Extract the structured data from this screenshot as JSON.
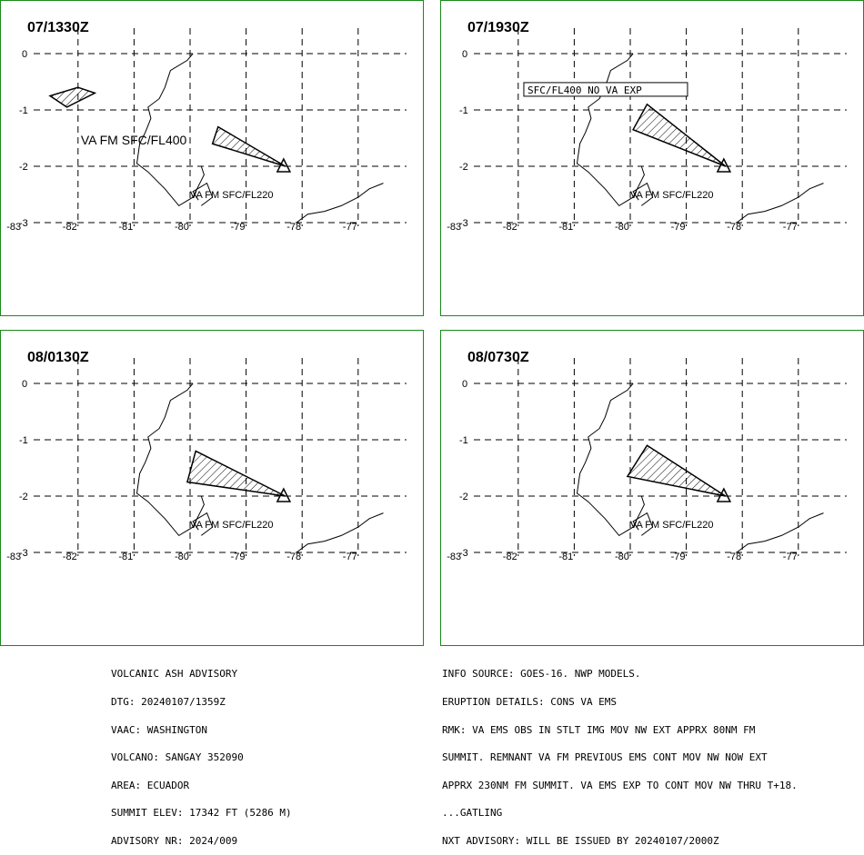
{
  "panels": [
    {
      "time": "07/1330Z",
      "labels": [
        {
          "text": "VA FM SFC/FL400",
          "lon": -81.95,
          "lat": -1.55,
          "big": true
        },
        {
          "text": "VA FM SFC/FL220",
          "lon": -80.0,
          "lat": -2.5
        }
      ],
      "boxed_label": null,
      "polygons": [
        [
          [
            -82.0,
            -0.6
          ],
          [
            -81.7,
            -0.7
          ],
          [
            -82.2,
            -0.95
          ],
          [
            -82.5,
            -0.75
          ]
        ],
        [
          [
            -79.5,
            -1.3
          ],
          [
            -78.3,
            -2.0
          ],
          [
            -79.6,
            -1.6
          ]
        ]
      ]
    },
    {
      "time": "07/1930Z",
      "labels": [
        {
          "text": "VA FM SFC/FL220",
          "lon": -80.0,
          "lat": -2.5
        }
      ],
      "boxed_label": {
        "text": "SFC/FL400 NO VA EXP",
        "lon": -81.9,
        "lat": -0.66
      },
      "polygons": [
        [
          [
            -79.7,
            -0.9
          ],
          [
            -78.3,
            -2.0
          ],
          [
            -79.95,
            -1.35
          ]
        ]
      ]
    },
    {
      "time": "08/0130Z",
      "labels": [
        {
          "text": "VA FM SFC/FL220",
          "lon": -80.0,
          "lat": -2.5
        }
      ],
      "boxed_label": null,
      "polygons": [
        [
          [
            -79.9,
            -1.2
          ],
          [
            -78.3,
            -2.0
          ],
          [
            -80.05,
            -1.75
          ]
        ]
      ]
    },
    {
      "time": "08/0730Z",
      "labels": [
        {
          "text": "VA FM SFC/FL220",
          "lon": -80.0,
          "lat": -2.5
        }
      ],
      "boxed_label": null,
      "polygons": [
        [
          [
            -79.7,
            -1.1
          ],
          [
            -78.3,
            -2.0
          ],
          [
            -80.05,
            -1.65
          ]
        ]
      ]
    }
  ],
  "axes": {
    "lon_ticks": [
      "-83",
      "-82",
      "-81",
      "-80",
      "-79",
      "-78",
      "-77"
    ],
    "lat_ticks": [
      "0",
      "-1",
      "-2",
      "-3"
    ],
    "lon_range": [
      -83.3,
      -76.55
    ],
    "lat_range": [
      0.0,
      -3.0
    ]
  },
  "volcano": {
    "name": "SANGAY",
    "lon": -78.33,
    "lat": -2.0
  },
  "advisory_left": [
    "VOLCANIC ASH ADVISORY",
    "DTG: 20240107/1359Z",
    "VAAC: WASHINGTON",
    "VOLCANO: SANGAY 352090",
    "AREA: ECUADOR",
    "SUMMIT ELEV: 17342 FT (5286 M)",
    "ADVISORY NR: 2024/009"
  ],
  "advisory_right": [
    "INFO SOURCE: GOES-16. NWP MODELS.",
    "ERUPTION DETAILS: CONS VA EMS",
    "RMK: VA EMS OBS IN STLT IMG MOV NW EXT APPRX 80NM FM",
    "SUMMIT. REMNANT VA FM PREVIOUS EMS CONT MOV NW NOW EXT",
    "APPRX 230NM FM SUMMIT. VA EMS EXP TO CONT MOV NW THRU T+18.",
    "...GATLING",
    "NXT ADVISORY: WILL BE ISSUED BY 20240107/2000Z"
  ],
  "colors": {
    "border": "#1a8a1a",
    "ink": "#000000"
  }
}
